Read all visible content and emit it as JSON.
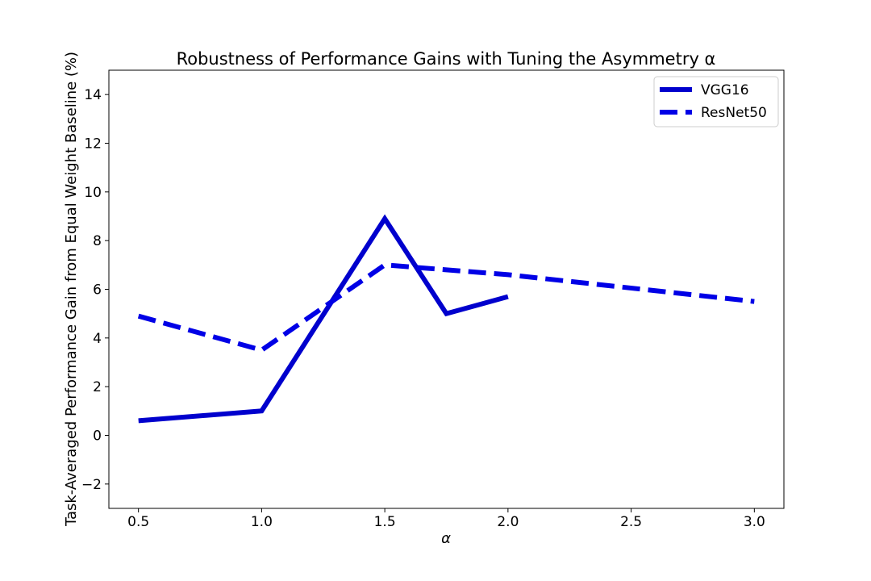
{
  "chart_data": {
    "type": "line",
    "title": "Robustness of Performance Gains with Tuning the Asymmetry α",
    "xlabel": "α",
    "ylabel": "Task-Averaged Performance Gain from Equal Weight Baseline (%)",
    "xlim": [
      0.38,
      3.12
    ],
    "ylim": [
      -3,
      15
    ],
    "x_ticks": [
      0.5,
      1.0,
      1.5,
      2.0,
      2.5,
      3.0
    ],
    "x_tick_labels": [
      "0.5",
      "1.0",
      "1.5",
      "2.0",
      "2.5",
      "3.0"
    ],
    "y_ticks": [
      -2,
      0,
      2,
      4,
      6,
      8,
      10,
      12,
      14
    ],
    "y_tick_labels": [
      "−2",
      "0",
      "2",
      "4",
      "6",
      "8",
      "10",
      "12",
      "14"
    ],
    "grid": false,
    "legend_position": "top-right",
    "series": [
      {
        "name": "VGG16",
        "style": "solid",
        "color": "#0000cd",
        "x": [
          0.5,
          1.0,
          1.5,
          1.75,
          2.0
        ],
        "y": [
          0.6,
          1.0,
          8.9,
          5.0,
          5.7
        ]
      },
      {
        "name": "ResNet50",
        "style": "dashed",
        "color": "#0000e6",
        "x": [
          0.5,
          1.0,
          1.5,
          2.0,
          3.0
        ],
        "y": [
          4.9,
          3.5,
          7.0,
          6.6,
          5.5
        ]
      }
    ]
  }
}
